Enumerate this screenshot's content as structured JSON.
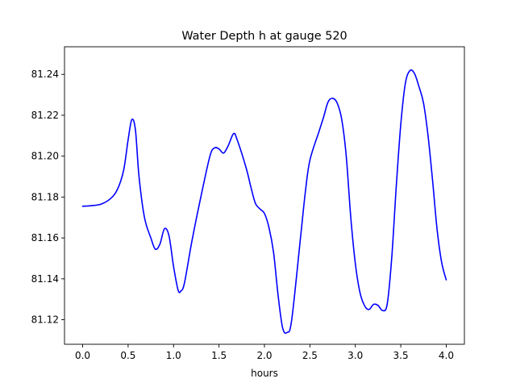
{
  "chart_data": {
    "type": "line",
    "title": "Water Depth h at gauge 520",
    "xlabel": "hours",
    "ylabel": "",
    "xlim": [
      -0.2,
      4.2
    ],
    "ylim": [
      81.108,
      81.2535
    ],
    "grid": false,
    "x_ticks": [
      0.0,
      0.5,
      1.0,
      1.5,
      2.0,
      2.5,
      3.0,
      3.5,
      4.0
    ],
    "x_tick_labels": [
      "0.0",
      "0.5",
      "1.0",
      "1.5",
      "2.0",
      "2.5",
      "3.0",
      "3.5",
      "4.0"
    ],
    "y_ticks": [
      81.12,
      81.14,
      81.16,
      81.18,
      81.2,
      81.22,
      81.24
    ],
    "y_tick_labels": [
      "81.12",
      "81.14",
      "81.16",
      "81.18",
      "81.20",
      "81.22",
      "81.24"
    ],
    "line_color": "#0000ff",
    "series": [
      {
        "x": [
          0.0,
          0.1,
          0.2,
          0.3,
          0.38,
          0.45,
          0.5,
          0.54,
          0.58,
          0.62,
          0.68,
          0.75,
          0.8,
          0.85,
          0.9,
          0.95,
          1.0,
          1.05,
          1.08,
          1.12,
          1.2,
          1.3,
          1.4,
          1.45,
          1.5,
          1.55,
          1.6,
          1.66,
          1.7,
          1.8,
          1.85,
          1.9,
          1.95,
          2.0,
          2.05,
          2.1,
          2.15,
          2.2,
          2.25,
          2.3,
          2.4,
          2.45,
          2.5,
          2.6,
          2.65,
          2.7,
          2.75,
          2.8,
          2.85,
          2.9,
          2.95,
          3.0,
          3.05,
          3.1,
          3.15,
          3.2,
          3.25,
          3.3,
          3.35,
          3.4,
          3.45,
          3.5,
          3.55,
          3.6,
          3.65,
          3.7,
          3.75,
          3.8,
          3.85,
          3.9,
          3.95,
          4.0
        ],
        "y": [
          81.1755,
          81.1758,
          81.1765,
          81.179,
          81.1835,
          81.193,
          81.208,
          81.2178,
          81.213,
          81.19,
          81.17,
          81.16,
          81.1545,
          81.157,
          81.1645,
          81.161,
          81.146,
          81.1345,
          81.134,
          81.138,
          81.158,
          81.18,
          81.2,
          81.204,
          81.2035,
          81.2015,
          81.205,
          81.211,
          81.208,
          81.194,
          81.185,
          81.177,
          81.1742,
          81.172,
          81.165,
          81.153,
          81.132,
          81.116,
          81.1138,
          81.12,
          81.1615,
          81.1825,
          81.198,
          81.212,
          81.219,
          81.2265,
          81.2283,
          81.226,
          81.218,
          81.2,
          81.17,
          81.1475,
          81.1335,
          81.127,
          81.125,
          81.1275,
          81.127,
          81.1245,
          81.1275,
          81.15,
          81.185,
          81.2155,
          81.2355,
          81.2418,
          81.2405,
          81.234,
          81.226,
          81.21,
          81.188,
          81.164,
          81.148,
          81.1395
        ]
      }
    ]
  }
}
